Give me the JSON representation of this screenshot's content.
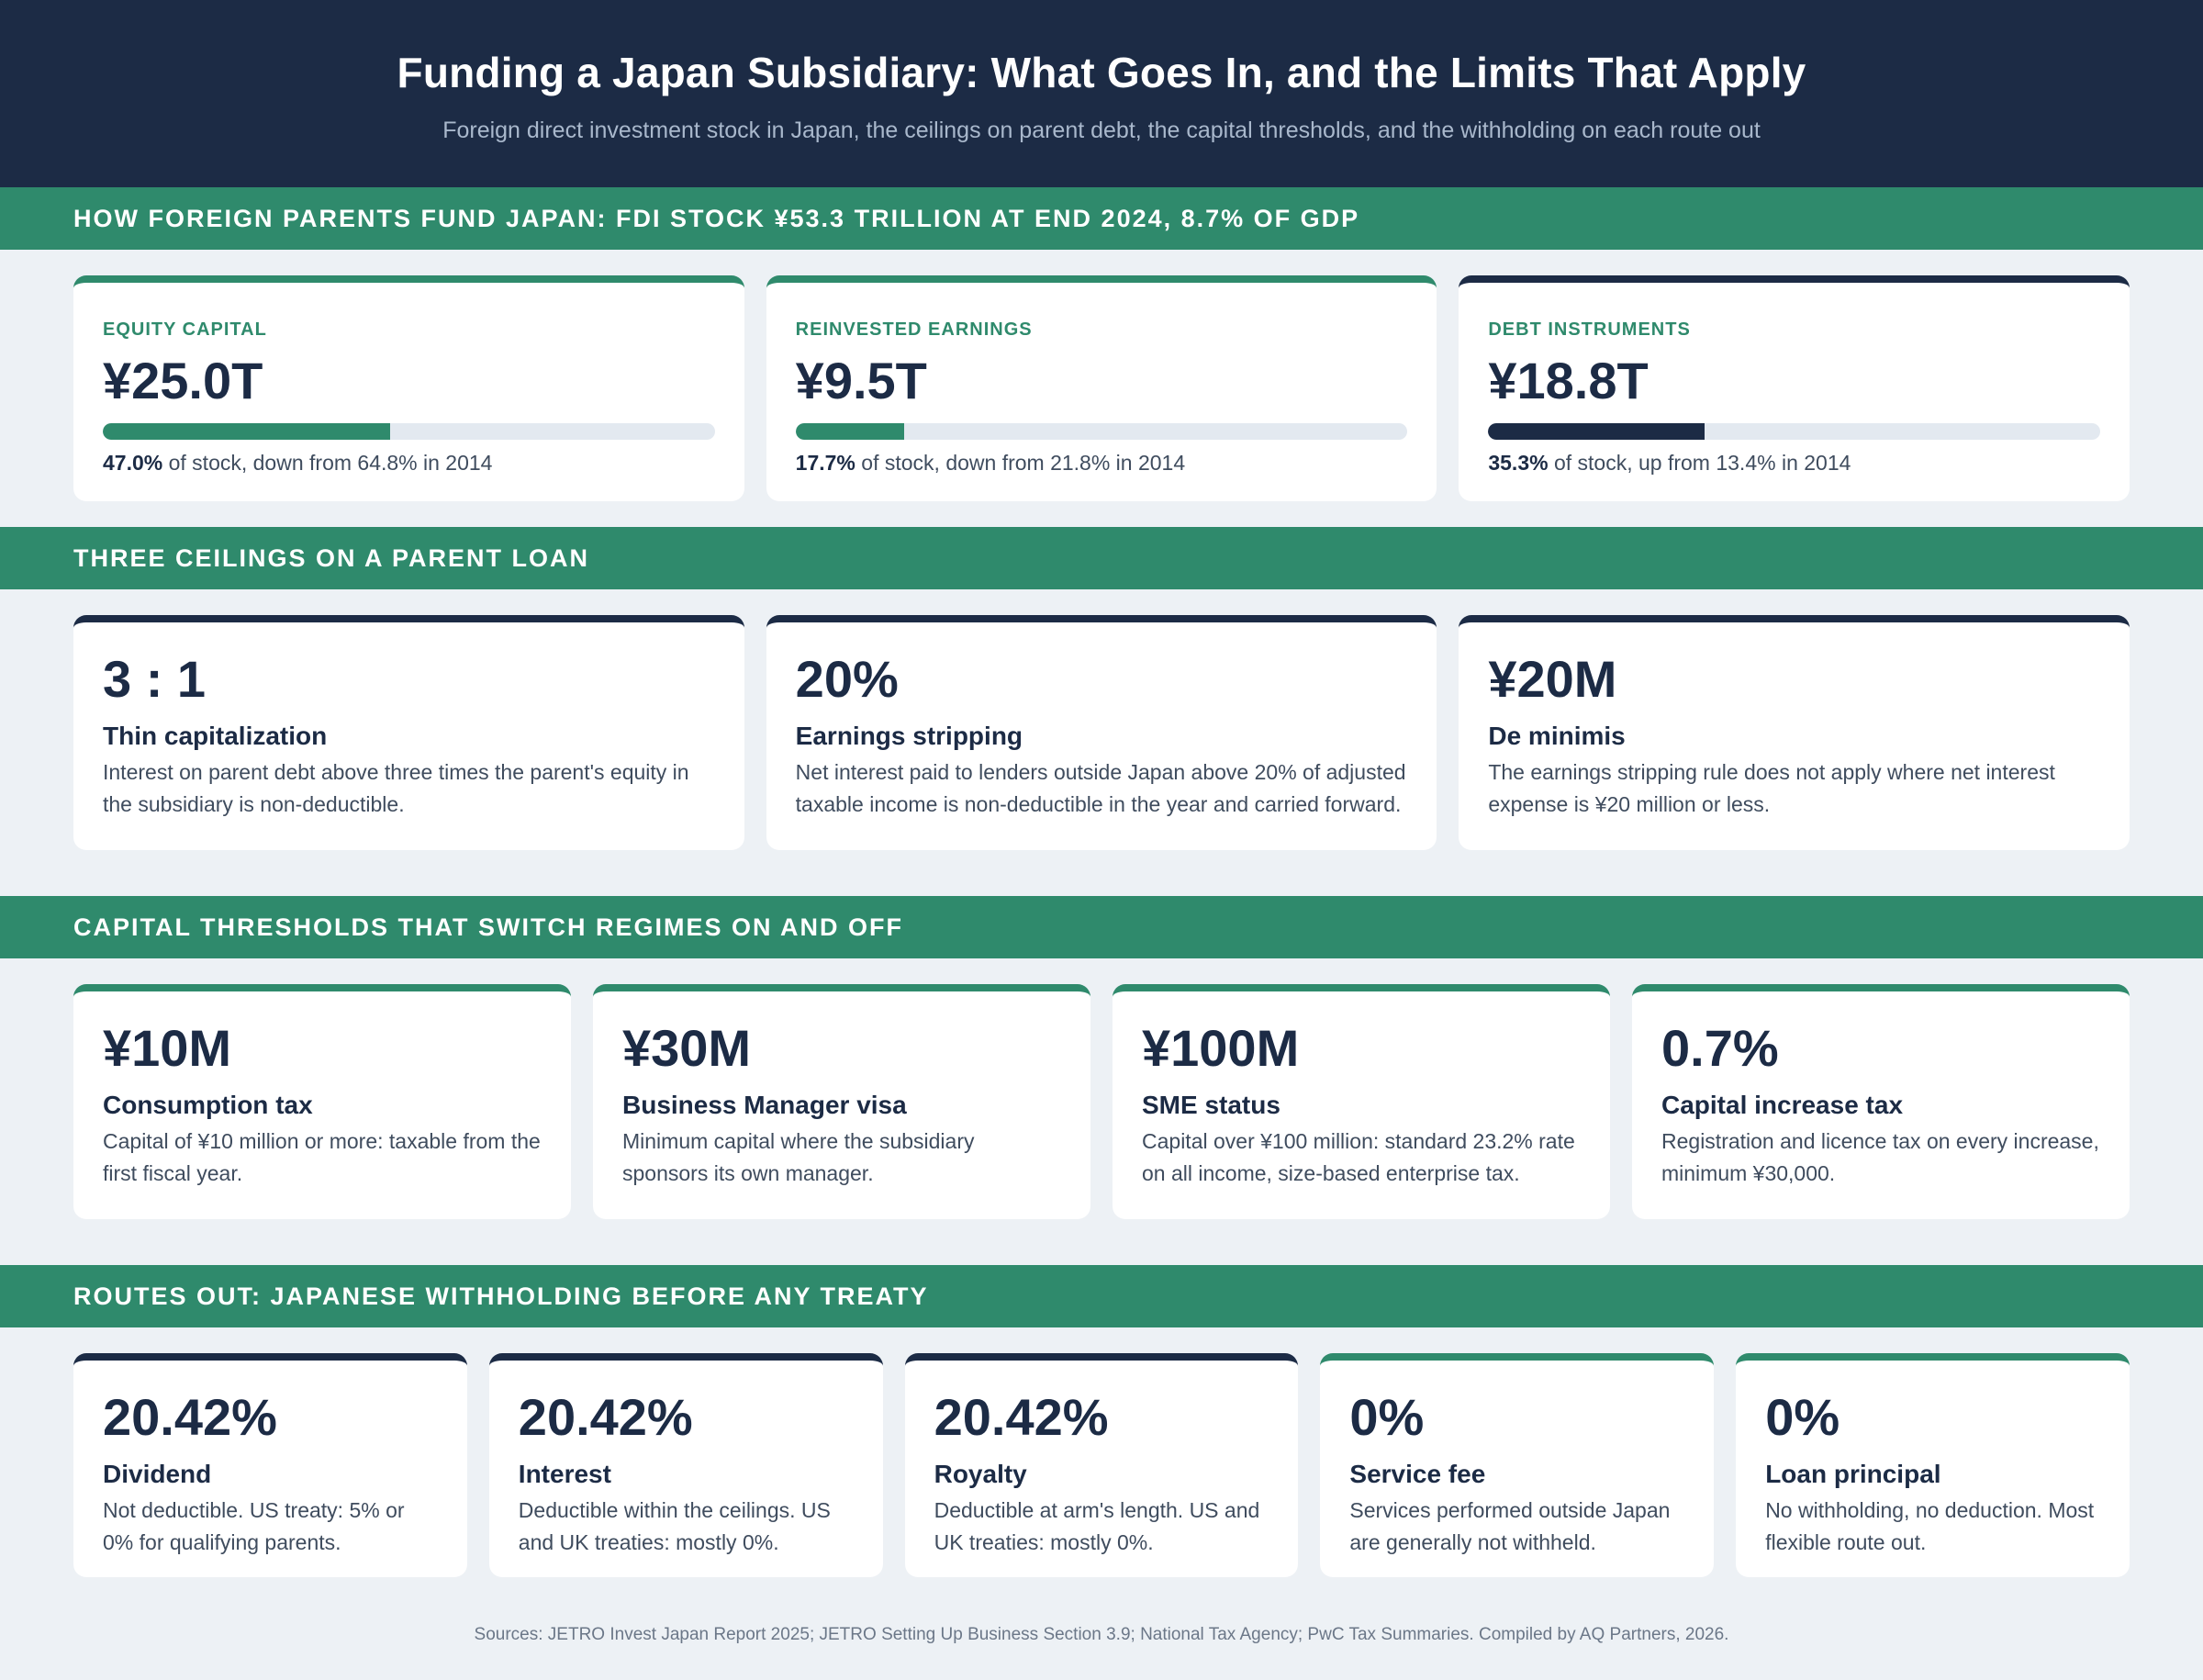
{
  "header": {
    "title": "Funding a Japan Subsidiary: What Goes In, and the Limits That Apply",
    "subtitle": "Foreign direct investment stock in Japan, the ceilings on parent debt, the capital thresholds, and the withholding on each route out"
  },
  "fdi": {
    "heading": "HOW FOREIGN PARENTS FUND JAPAN: FDI STOCK ¥53.3 TRILLION AT END 2024, 8.7% OF GDP",
    "cards": [
      {
        "label": "EQUITY CAPITAL",
        "value": "¥25.0T",
        "share": 47.0,
        "share_text": "47.0%",
        "note": " of stock, down from 64.8% in 2014",
        "color": "#2f8a6c"
      },
      {
        "label": "REINVESTED EARNINGS",
        "value": "¥9.5T",
        "share": 17.7,
        "share_text": "17.7%",
        "note": " of stock, down from 21.8% in 2014",
        "color": "#2f8a6c"
      },
      {
        "label": "DEBT INSTRUMENTS",
        "value": "¥18.8T",
        "share": 35.3,
        "share_text": "35.3%",
        "note": " of stock, up from 13.4% in 2014",
        "color": "#1c2b45"
      }
    ]
  },
  "ceilings": {
    "heading": "THREE CEILINGS ON A PARENT LOAN",
    "cards": [
      {
        "value": "3 : 1",
        "title": "Thin capitalization",
        "desc": "Interest on parent debt above three times the parent's equity in the subsidiary is non-deductible."
      },
      {
        "value": "20%",
        "title": "Earnings stripping",
        "desc": "Net interest paid to lenders outside Japan above 20% of adjusted taxable income is non-deductible in the year and carried forward."
      },
      {
        "value": "¥20M",
        "title": "De minimis",
        "desc": "The earnings stripping rule does not apply where net interest expense is ¥20 million or less."
      }
    ]
  },
  "thresholds": {
    "heading": "CAPITAL THRESHOLDS THAT SWITCH REGIMES ON AND OFF",
    "cards": [
      {
        "value": "¥10M",
        "title": "Consumption tax",
        "desc": "Capital of ¥10 million or more: taxable from the first fiscal year."
      },
      {
        "value": "¥30M",
        "title": "Business Manager visa",
        "desc": "Minimum capital where the subsidiary sponsors its own manager."
      },
      {
        "value": "¥100M",
        "title": "SME status",
        "desc": "Capital over ¥100 million: standard 23.2% rate on all income, size-based enterprise tax."
      },
      {
        "value": "0.7%",
        "title": "Capital increase tax",
        "desc": "Registration and licence tax on every increase, minimum ¥30,000."
      }
    ]
  },
  "routes": {
    "heading": "ROUTES OUT: JAPANESE WITHHOLDING BEFORE ANY TREATY",
    "cards": [
      {
        "value": "20.42%",
        "title": "Dividend",
        "desc": "Not deductible. US treaty: 5% or 0% for qualifying parents."
      },
      {
        "value": "20.42%",
        "title": "Interest",
        "desc": "Deductible within the ceilings. US and UK treaties: mostly 0%."
      },
      {
        "value": "20.42%",
        "title": "Royalty",
        "desc": "Deductible at arm's length. US and UK treaties: mostly 0%."
      },
      {
        "value": "0%",
        "title": "Service fee",
        "desc": "Services performed outside Japan are generally not withheld."
      },
      {
        "value": "0%",
        "title": "Loan principal",
        "desc": "No withholding, no deduction. Most flexible route out."
      }
    ]
  },
  "footer": {
    "sources": "Sources: JETRO Invest Japan Report 2025; JETRO Setting Up Business Section 3.9; National Tax Agency; PwC Tax Summaries. Compiled by AQ Partners, 2026."
  },
  "colors": {
    "navy": "#1c2b45",
    "green": "#2f8a6c",
    "background": "#edf1f5"
  }
}
